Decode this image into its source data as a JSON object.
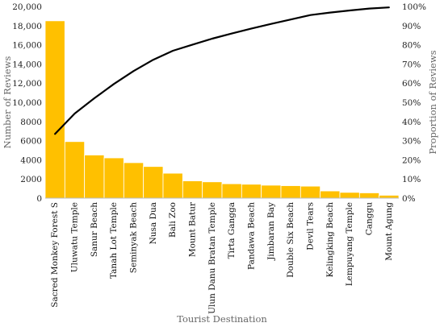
{
  "chart_data": {
    "type": "bar",
    "title": "",
    "xlabel": "Tourist Destination",
    "ylabel": "Number of Reviews",
    "y2label": "Proportion of Reviews",
    "ylim": [
      0,
      20000
    ],
    "y2lim": [
      0,
      100
    ],
    "yticks": [
      "0",
      "2000",
      "4000",
      "6000",
      "8000",
      "10,000",
      "12,000",
      "14,000",
      "16,000",
      "18,000",
      "20,000"
    ],
    "y2ticks": [
      "0%",
      "10%",
      "20%",
      "30%",
      "40%",
      "50%",
      "60%",
      "70%",
      "80%",
      "90%",
      "100%"
    ],
    "grid": false,
    "legend": "none",
    "bar_color": "#ffc000",
    "line_color": "#000000",
    "categories": [
      "Sacred Monkey Forest S",
      "Uluwatu Temple",
      "Sanur Beach",
      "Tanah Lot Temple",
      "Seminyak Beach",
      "Nusa Dua",
      "Bali Zoo",
      "Mount Batur",
      "Ulun Danu Bratan Temple",
      "Tirta Gangga",
      "Pandawa Beach",
      "Jimbaran Bay",
      "Double Six Beach",
      "Devil Tears",
      "Kelingking Beach",
      "Lempuyang Temple",
      "Canggu",
      "Mount Agung"
    ],
    "series": [
      {
        "type": "bar",
        "axis": "left",
        "values": [
          18500,
          5900,
          4500,
          4200,
          3700,
          3300,
          2600,
          1800,
          1700,
          1500,
          1450,
          1350,
          1300,
          1250,
          750,
          600,
          550,
          300
        ]
      },
      {
        "type": "line",
        "axis": "right",
        "values": [
          33.5,
          44.1,
          52.1,
          59.6,
          66.3,
          72.2,
          76.9,
          80.1,
          83.2,
          85.9,
          88.5,
          90.9,
          93.2,
          95.5,
          96.8,
          97.9,
          98.9,
          99.5
        ]
      }
    ]
  }
}
